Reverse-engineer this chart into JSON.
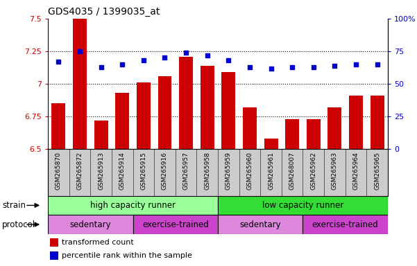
{
  "title": "GDS4035 / 1399035_at",
  "samples": [
    "GSM265870",
    "GSM265872",
    "GSM265913",
    "GSM265914",
    "GSM265915",
    "GSM265916",
    "GSM265957",
    "GSM265958",
    "GSM265959",
    "GSM265960",
    "GSM265961",
    "GSM268007",
    "GSM265962",
    "GSM265963",
    "GSM265964",
    "GSM265965"
  ],
  "transformed_count": [
    6.85,
    7.5,
    6.72,
    6.93,
    7.01,
    7.06,
    7.21,
    7.14,
    7.09,
    6.82,
    6.58,
    6.73,
    6.73,
    6.82,
    6.91,
    6.91
  ],
  "percentile_rank": [
    67,
    75,
    63,
    65,
    68,
    70,
    74,
    72,
    68,
    63,
    62,
    63,
    63,
    64,
    65,
    65
  ],
  "bar_color": "#cc0000",
  "dot_color": "#0000cc",
  "ylim_left": [
    6.5,
    7.5
  ],
  "ylim_right": [
    0,
    100
  ],
  "yticks_left": [
    6.5,
    6.75,
    7.0,
    7.25,
    7.5
  ],
  "yticks_right": [
    0,
    25,
    50,
    75,
    100
  ],
  "ytick_labels_left": [
    "6.5",
    "6.75",
    "7",
    "7.25",
    "7.5"
  ],
  "ytick_labels_right": [
    "0",
    "25",
    "50",
    "75",
    "100%"
  ],
  "hlines": [
    6.75,
    7.0,
    7.25
  ],
  "strain_groups": [
    {
      "label": "high capacity runner",
      "start": 0,
      "end": 8,
      "color": "#99ff99"
    },
    {
      "label": "low capacity runner",
      "start": 8,
      "end": 16,
      "color": "#33dd33"
    }
  ],
  "protocol_groups": [
    {
      "label": "sedentary",
      "start": 0,
      "end": 4,
      "color": "#dd88dd"
    },
    {
      "label": "exercise-trained",
      "start": 4,
      "end": 8,
      "color": "#cc44cc"
    },
    {
      "label": "sedentary",
      "start": 8,
      "end": 12,
      "color": "#dd88dd"
    },
    {
      "label": "exercise-trained",
      "start": 12,
      "end": 16,
      "color": "#cc44cc"
    }
  ],
  "legend_bar_label": "transformed count",
  "legend_dot_label": "percentile rank within the sample",
  "strain_label": "strain",
  "protocol_label": "protocol",
  "sample_bg_color": "#cccccc",
  "plot_bg_color": "#ffffff"
}
